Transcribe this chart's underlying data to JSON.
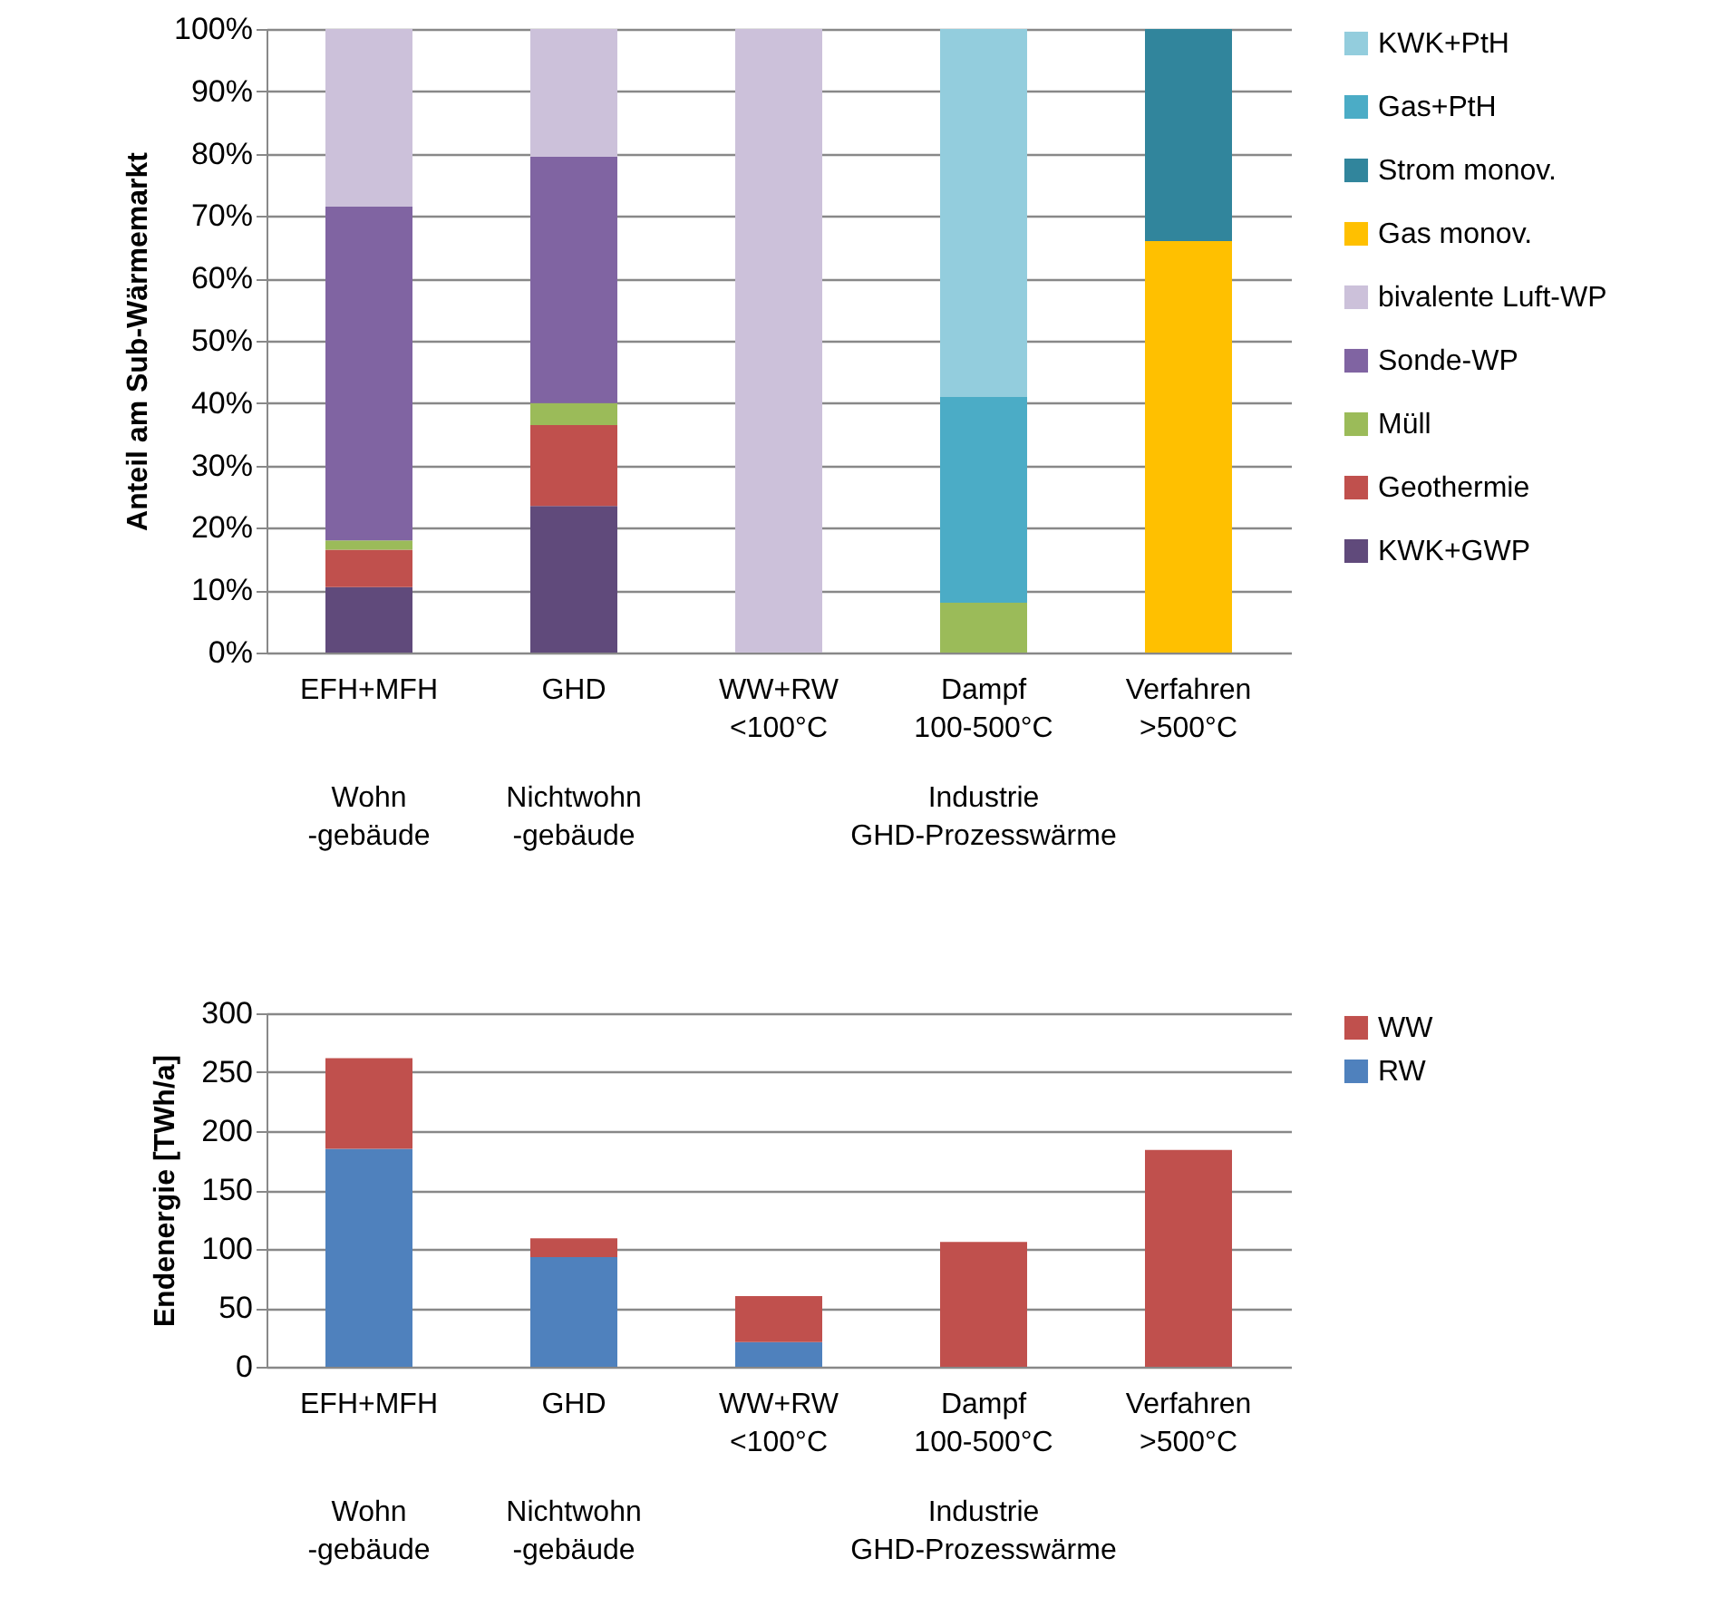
{
  "chart_data": [
    {
      "type": "bar",
      "stacked": true,
      "ylabel": "Anteil am Sub-Wärmemarkt",
      "categories": [
        "EFH+MFH",
        "GHD",
        "WW+RW\n<100°C",
        "Dampf\n100-500°C",
        "Verfahren\n>500°C"
      ],
      "series": [
        {
          "name": "KWK+GWP",
          "color": "#604a7b",
          "values": [
            10.5,
            23.5,
            0,
            0,
            0
          ]
        },
        {
          "name": "Geothermie",
          "color": "#c0504d",
          "values": [
            6,
            13,
            0,
            0,
            0
          ]
        },
        {
          "name": "Müll",
          "color": "#9bbb59",
          "values": [
            1.5,
            3.5,
            0,
            8,
            0
          ]
        },
        {
          "name": "Sonde-WP",
          "color": "#8064a2",
          "values": [
            53.5,
            39.5,
            0,
            0,
            0
          ]
        },
        {
          "name": "bivalente Luft-WP",
          "color": "#ccc1da",
          "values": [
            28.5,
            20.5,
            100,
            0,
            0
          ]
        },
        {
          "name": "Gas monov.",
          "color": "#ffc000",
          "values": [
            0,
            0,
            0,
            0,
            66
          ]
        },
        {
          "name": "Strom monov.",
          "color": "#31859c",
          "values": [
            0,
            0,
            0,
            0,
            34
          ]
        },
        {
          "name": "Gas+PtH",
          "color": "#4bacc6",
          "values": [
            0,
            0,
            0,
            33,
            0
          ]
        },
        {
          "name": "KWK+PtH",
          "color": "#93cddd",
          "values": [
            0,
            0,
            0,
            59,
            0
          ]
        }
      ],
      "ylim": [
        0,
        100
      ],
      "yticks": [
        {
          "value": 0,
          "label": "0%"
        },
        {
          "value": 10,
          "label": "10%"
        },
        {
          "value": 20,
          "label": "20%"
        },
        {
          "value": 30,
          "label": "30%"
        },
        {
          "value": 40,
          "label": "40%"
        },
        {
          "value": 50,
          "label": "50%"
        },
        {
          "value": 60,
          "label": "60%"
        },
        {
          "value": 70,
          "label": "70%"
        },
        {
          "value": 80,
          "label": "80%"
        },
        {
          "value": 90,
          "label": "90%"
        },
        {
          "value": 100,
          "label": "100%"
        }
      ],
      "grid": "y",
      "legend": "right",
      "annotations": [
        "Wohn\n-gebäude",
        "Nichtwohn\n-gebäude",
        "Industrie\nGHD-Prozesswärme"
      ]
    },
    {
      "type": "bar",
      "stacked": true,
      "ylabel": "Endenergie [TWh/a]",
      "categories": [
        "EFH+MFH",
        "GHD",
        "WW+RW\n<100°C",
        "Dampf\n100-500°C",
        "Verfahren\n>500°C"
      ],
      "series": [
        {
          "name": "RW",
          "color": "#4f81bd",
          "values": [
            185,
            93,
            21,
            0,
            0
          ]
        },
        {
          "name": "WW",
          "color": "#c0504d",
          "values": [
            77,
            16,
            39,
            106,
            184
          ]
        }
      ],
      "ylim": [
        0,
        300
      ],
      "yticks": [
        0,
        50,
        100,
        150,
        200,
        250,
        300
      ],
      "grid": "y",
      "legend": "right",
      "annotations": [
        "Wohn\n-gebäude",
        "Nichtwohn\n-gebäude",
        "Industrie\nGHD-Prozesswärme"
      ]
    }
  ]
}
